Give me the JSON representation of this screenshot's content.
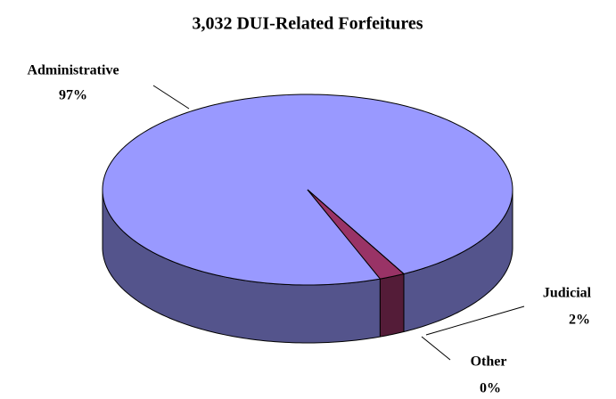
{
  "chart_data": {
    "type": "pie",
    "title": "3,032 DUI-Related Forfeitures",
    "categories": [
      "Administrative",
      "Judicial",
      "Other"
    ],
    "values": [
      97,
      2,
      0
    ],
    "value_labels": [
      "97%",
      "2%",
      "0%"
    ],
    "colors": [
      "#9999ff",
      "#993366",
      "#ffffcc"
    ]
  }
}
